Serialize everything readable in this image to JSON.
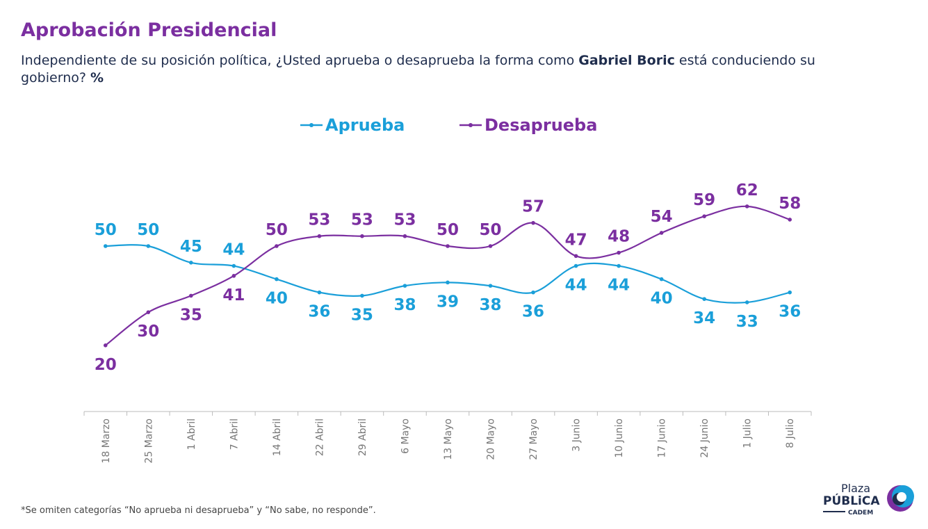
{
  "title": "Aprobación Presidencial",
  "subtitle": {
    "pre": "Independiente de su posición política, ¿Usted aprueba o desaprueba la forma como ",
    "bold": "Gabriel Boric",
    "post": " está conduciendo su gobierno? ",
    "unit": "%"
  },
  "footnote": "*Se omiten categorías “No aprueba ni desaprueba” y “No sabe, no responde”.",
  "logo": {
    "line1": "Plaza",
    "line2": "PÚBLiCA",
    "line3": "CADEM"
  },
  "chart_data": {
    "type": "line",
    "categories": [
      "18 Marzo",
      "25 Marzo",
      "1 Abril",
      "7 Abril",
      "14 Abril",
      "22 Abril",
      "29 Abril",
      "6 Mayo",
      "13 Mayo",
      "20 Mayo",
      "27 Mayo",
      "3 Junio",
      "10 Junio",
      "17 Junio",
      "24 Junio",
      "1 Julio",
      "8 Julio"
    ],
    "series": [
      {
        "name": "Aprueba",
        "color": "#1a9fd9",
        "values": [
          50,
          50,
          45,
          44,
          40,
          36,
          35,
          38,
          39,
          38,
          36,
          44,
          44,
          40,
          34,
          33,
          36
        ]
      },
      {
        "name": "Desaprueba",
        "color": "#7b2fa0",
        "values": [
          20,
          30,
          35,
          41,
          50,
          53,
          53,
          53,
          50,
          50,
          57,
          47,
          48,
          54,
          59,
          62,
          58
        ]
      }
    ],
    "ylim": [
      0,
      100
    ],
    "grid": false,
    "legend": "top-center",
    "data_labels": true
  }
}
